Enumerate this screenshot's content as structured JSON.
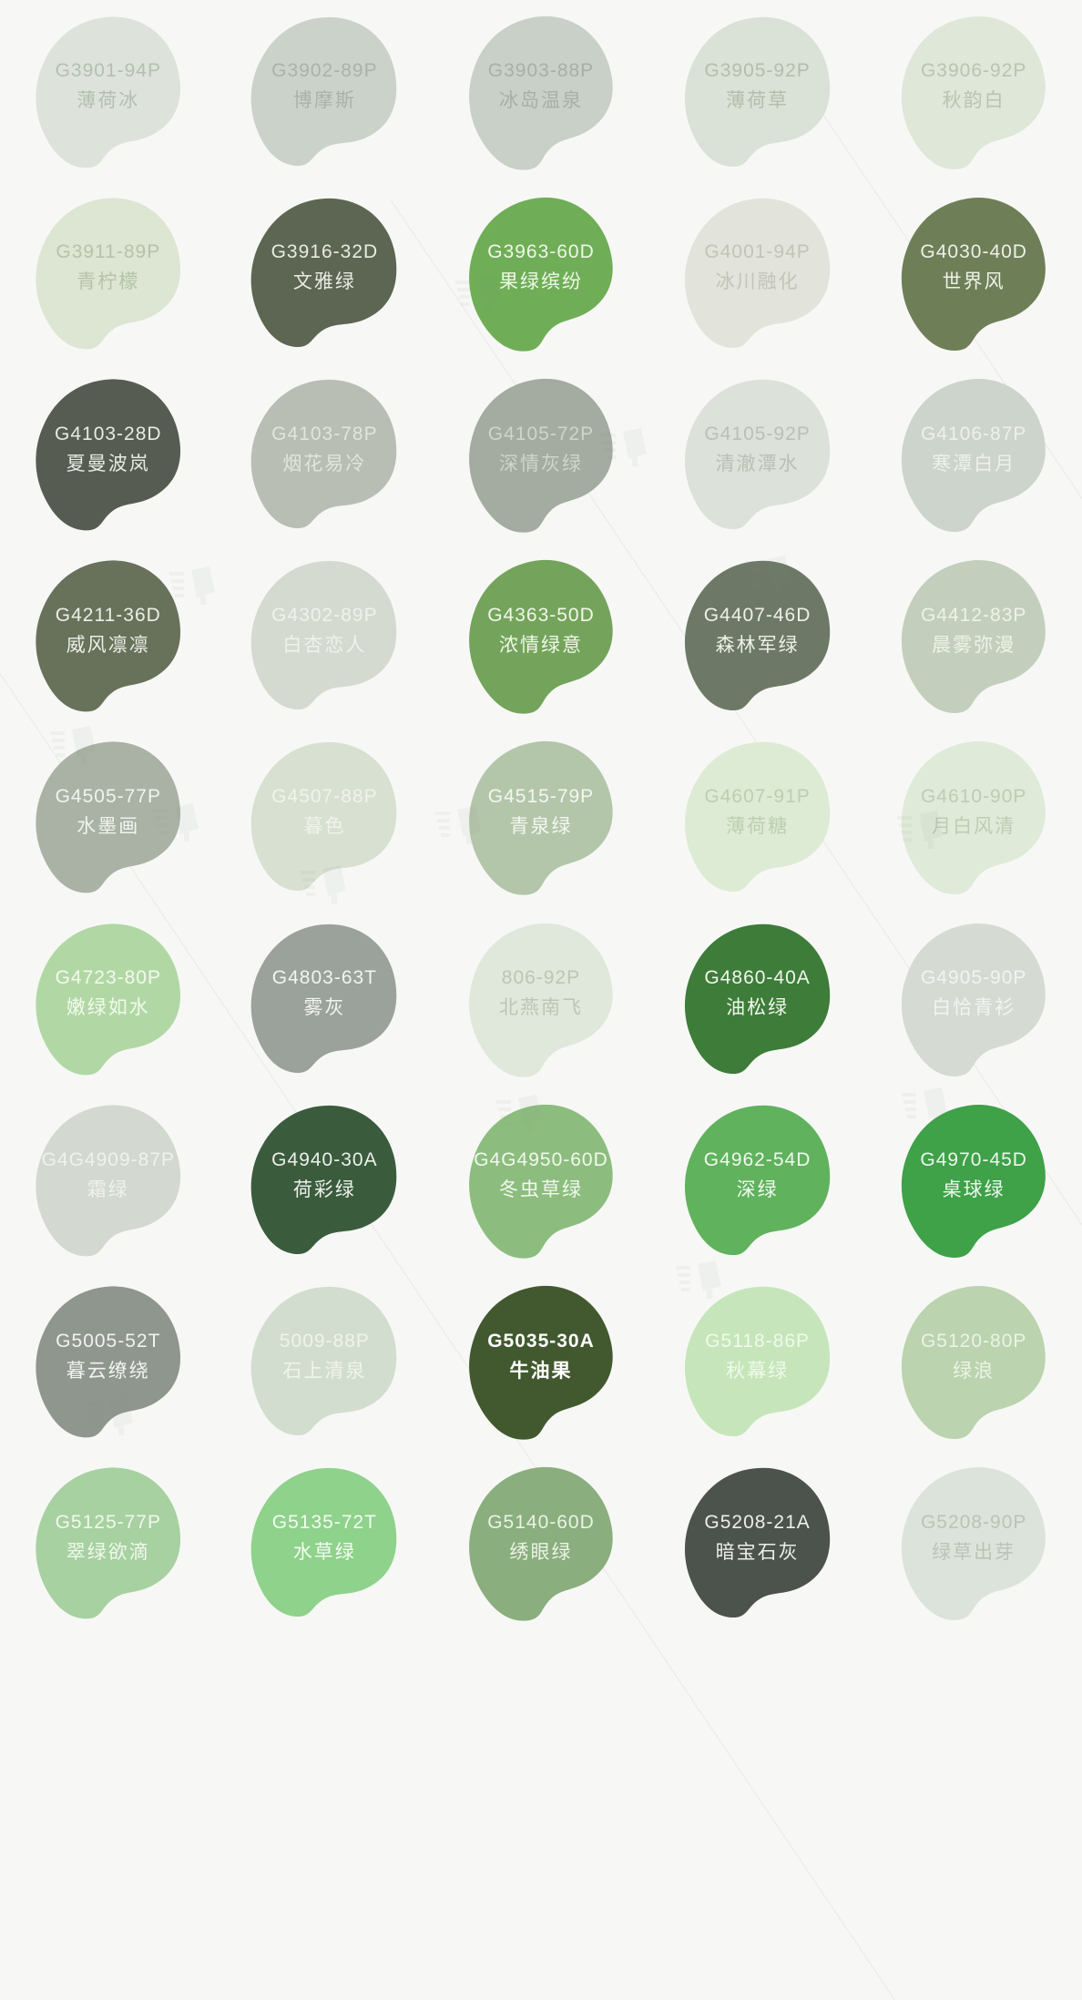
{
  "page": {
    "background": "#f7f8f6",
    "watermark_color": "#868d86"
  },
  "palette": {
    "columns": 5,
    "rows": 9,
    "swatches": [
      {
        "code": "G3901-94P",
        "name": "薄荷冰",
        "bg": "#dde3da",
        "fg": "#b5beb2"
      },
      {
        "code": "G3902-89P",
        "name": "博摩斯",
        "bg": "#cbd2ca",
        "fg": "#aab3a8"
      },
      {
        "code": "G3903-88P",
        "name": "冰岛温泉",
        "bg": "#c8d0c8",
        "fg": "#a7b0a6"
      },
      {
        "code": "G3905-92P",
        "name": "薄荷草",
        "bg": "#dae1d6",
        "fg": "#b4bdac"
      },
      {
        "code": "G3906-92P",
        "name": "秋韵白",
        "bg": "#dfe7d9",
        "fg": "#bac3b0"
      },
      {
        "code": "G3911-89P",
        "name": "青柠檬",
        "bg": "#dce6d3",
        "fg": "#b6c2a9"
      },
      {
        "code": "G3916-32D",
        "name": "文雅绿",
        "bg": "#5d6652",
        "fg": "#e9ebe3"
      },
      {
        "code": "G3963-60D",
        "name": "果绿缤纷",
        "bg": "#6fae56",
        "fg": "#f0f7ea"
      },
      {
        "code": "G4001-94P",
        "name": "冰川融化",
        "bg": "#e2e3db",
        "fg": "#c2c4b7"
      },
      {
        "code": "G4030-40D",
        "name": "世界风",
        "bg": "#6e7f58",
        "fg": "#eef0e7"
      },
      {
        "code": "G4103-28D",
        "name": "夏曼波岚",
        "bg": "#565c51",
        "fg": "#e8eae4"
      },
      {
        "code": "G4103-78P",
        "name": "烟花易冷",
        "bg": "#b8beb4",
        "fg": "#e1e5dc"
      },
      {
        "code": "G4105-72P",
        "name": "深情灰绿",
        "bg": "#a4aba0",
        "fg": "#d0d5cb"
      },
      {
        "code": "G4105-92P",
        "name": "清澈潭水",
        "bg": "#dce1d9",
        "fg": "#bbc0b6"
      },
      {
        "code": "G4106-87P",
        "name": "寒潭白月",
        "bg": "#ccd4cc",
        "fg": "#eef1ea"
      },
      {
        "code": "G4211-36D",
        "name": "威风凛凛",
        "bg": "#68725b",
        "fg": "#eceee7"
      },
      {
        "code": "G4302-89P",
        "name": "白杏恋人",
        "bg": "#d5dad1",
        "fg": "#eff2eb"
      },
      {
        "code": "G4363-50D",
        "name": "浓情绿意",
        "bg": "#74a45b",
        "fg": "#f1f7ea"
      },
      {
        "code": "G4407-46D",
        "name": "森林军绿",
        "bg": "#6d7966",
        "fg": "#eef0e9"
      },
      {
        "code": "G4412-83P",
        "name": "晨雾弥漫",
        "bg": "#c3cfbc",
        "fg": "#edf3e7"
      },
      {
        "code": "G4505-77P",
        "name": "水墨画",
        "bg": "#a9b2a5",
        "fg": "#f0f4ed"
      },
      {
        "code": "G4507-88P",
        "name": "暮色",
        "bg": "#d8e0d1",
        "fg": "#eff3ea"
      },
      {
        "code": "G4515-79P",
        "name": "青泉绿",
        "bg": "#b4c6aa",
        "fg": "#f3f7ef"
      },
      {
        "code": "G4607-91P",
        "name": "薄荷糖",
        "bg": "#ddebd5",
        "fg": "#bdceb2"
      },
      {
        "code": "G4610-90P",
        "name": "月白风清",
        "bg": "#dfead9",
        "fg": "#c0cbb4"
      },
      {
        "code": "G4723-80P",
        "name": "嫩绿如水",
        "bg": "#b1d8a4",
        "fg": "#f3f9ef"
      },
      {
        "code": "G4803-63T",
        "name": "雾灰",
        "bg": "#9aa29b",
        "fg": "#f2f4f1"
      },
      {
        "code": "806-92P",
        "name": "北燕南飞",
        "bg": "#e0e8db",
        "fg": "#bcc6b3"
      },
      {
        "code": "G4860-40A",
        "name": "油松绿",
        "bg": "#3e7c39",
        "fg": "#f0f6ed"
      },
      {
        "code": "G4905-90P",
        "name": "白恰青衫",
        "bg": "#d5dbd3",
        "fg": "#f1f4f0"
      },
      {
        "code": "G4G4909-87P",
        "name": "霜绿",
        "bg": "#d3d8d0",
        "fg": "#f0f2ed"
      },
      {
        "code": "G4940-30A",
        "name": "荷彩绿",
        "bg": "#3b5b3d",
        "fg": "#eaf1ea"
      },
      {
        "code": "G4G4950-60D",
        "name": "冬虫草绿",
        "bg": "#8cbd7e",
        "fg": "#f2f8ee"
      },
      {
        "code": "G4962-54D",
        "name": "深绿",
        "bg": "#60b25d",
        "fg": "#f1f9ef"
      },
      {
        "code": "G4970-45D",
        "name": "桌球绿",
        "bg": "#3fa148",
        "fg": "#eef7ee"
      },
      {
        "code": "G5005-52T",
        "name": "暮云缭绕",
        "bg": "#8f968e",
        "fg": "#f1f3f0"
      },
      {
        "code": "5009-88P",
        "name": "石上清泉",
        "bg": "#d3ddcf",
        "fg": "#eef4e9"
      },
      {
        "code": "G5035-30A",
        "name": "牛油果",
        "bg": "#425930",
        "fg": "#ffffff",
        "emphasis": true
      },
      {
        "code": "G5118-86P",
        "name": "秋幕绿",
        "bg": "#c6e5bb",
        "fg": "#effae9"
      },
      {
        "code": "G5120-80P",
        "name": "绿浪",
        "bg": "#bbd3af",
        "fg": "#ecf4e5"
      },
      {
        "code": "G5125-77P",
        "name": "翠绿欲滴",
        "bg": "#a7d1a0",
        "fg": "#f1f8ed"
      },
      {
        "code": "G5135-72T",
        "name": "水草绿",
        "bg": "#8ed28b",
        "fg": "#f5fcf3"
      },
      {
        "code": "G5140-60D",
        "name": "绣眼绿",
        "bg": "#8aae7e",
        "fg": "#ebf3e5"
      },
      {
        "code": "G5208-21A",
        "name": "暗宝石灰",
        "bg": "#4c524c",
        "fg": "#eceeec"
      },
      {
        "code": "G5208-90P",
        "name": "绿草出芽",
        "bg": "#dce3da",
        "fg": "#bbc3b7"
      }
    ]
  }
}
